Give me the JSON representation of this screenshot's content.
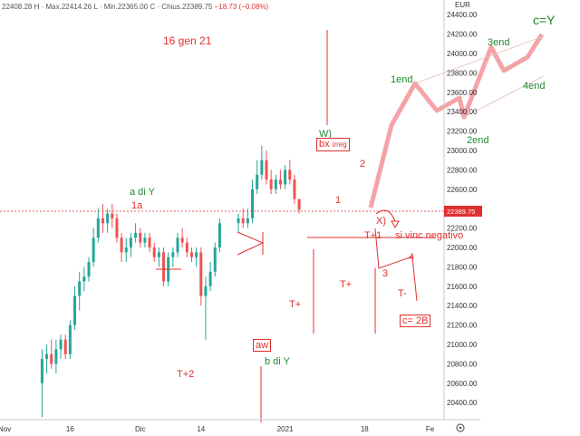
{
  "ohlc_bar": {
    "open": "22408.28",
    "high": "H · Max.22414.26",
    "low": "L · Min.22365.00",
    "close": "C · Chius.22389.75",
    "change": "−18.73 (−0.08%)"
  },
  "currency": "EUR",
  "current_price": "22389.75",
  "chart_data": {
    "type": "candlestick",
    "ylim": [
      20200,
      24500
    ],
    "yticks": [
      20400,
      20600,
      20800,
      21000,
      21200,
      21400,
      21600,
      21800,
      22000,
      22200,
      22400,
      22600,
      22800,
      23000,
      23200,
      23400,
      23600,
      23800,
      24000,
      24200,
      24400
    ],
    "xticks": [
      {
        "label": "Nov",
        "day": -7
      },
      {
        "label": "16",
        "day": 7
      },
      {
        "label": "Dic",
        "day": 22
      },
      {
        "label": "14",
        "day": 35
      },
      {
        "label": "2021",
        "day": 53
      },
      {
        "label": "18",
        "day": 70
      },
      {
        "label": "Fe",
        "day": 84
      }
    ],
    "xlim": [
      -8,
      87
    ],
    "series": [
      {
        "day": 1,
        "o": 20600,
        "h": 20950,
        "l": 20250,
        "c": 20850
      },
      {
        "day": 2,
        "o": 20850,
        "h": 21000,
        "l": 20700,
        "c": 20900
      },
      {
        "day": 3,
        "o": 20900,
        "h": 21050,
        "l": 20750,
        "c": 20800
      },
      {
        "day": 4,
        "o": 20800,
        "h": 21050,
        "l": 20700,
        "c": 20950
      },
      {
        "day": 5,
        "o": 20950,
        "h": 21100,
        "l": 20850,
        "c": 21050
      },
      {
        "day": 6,
        "o": 21050,
        "h": 21100,
        "l": 20850,
        "c": 20900
      },
      {
        "day": 7,
        "o": 20900,
        "h": 21250,
        "l": 20850,
        "c": 21200
      },
      {
        "day": 8,
        "o": 21200,
        "h": 21600,
        "l": 21150,
        "c": 21500
      },
      {
        "day": 9,
        "o": 21500,
        "h": 21750,
        "l": 21350,
        "c": 21650
      },
      {
        "day": 10,
        "o": 21650,
        "h": 21800,
        "l": 21550,
        "c": 21700
      },
      {
        "day": 11,
        "o": 21700,
        "h": 21900,
        "l": 21650,
        "c": 21850
      },
      {
        "day": 12,
        "o": 21850,
        "h": 22200,
        "l": 21800,
        "c": 22100
      },
      {
        "day": 13,
        "o": 22100,
        "h": 22400,
        "l": 22050,
        "c": 22300
      },
      {
        "day": 14,
        "o": 22300,
        "h": 22450,
        "l": 22150,
        "c": 22250
      },
      {
        "day": 15,
        "o": 22250,
        "h": 22400,
        "l": 22150,
        "c": 22350
      },
      {
        "day": 16,
        "o": 22350,
        "h": 22450,
        "l": 22200,
        "c": 22300
      },
      {
        "day": 17,
        "o": 22300,
        "h": 22350,
        "l": 22050,
        "c": 22100
      },
      {
        "day": 18,
        "o": 22100,
        "h": 22150,
        "l": 21850,
        "c": 21950
      },
      {
        "day": 19,
        "o": 21950,
        "h": 22100,
        "l": 21850,
        "c": 22000
      },
      {
        "day": 20,
        "o": 22000,
        "h": 22150,
        "l": 21900,
        "c": 22100
      },
      {
        "day": 21,
        "o": 22100,
        "h": 22250,
        "l": 22050,
        "c": 22150
      },
      {
        "day": 22,
        "o": 22150,
        "h": 22200,
        "l": 22000,
        "c": 22050
      },
      {
        "day": 23,
        "o": 22050,
        "h": 22150,
        "l": 22000,
        "c": 22100
      },
      {
        "day": 24,
        "o": 22100,
        "h": 22150,
        "l": 21950,
        "c": 22000
      },
      {
        "day": 25,
        "o": 22000,
        "h": 22050,
        "l": 21850,
        "c": 21900
      },
      {
        "day": 26,
        "o": 21900,
        "h": 22000,
        "l": 21800,
        "c": 21950
      },
      {
        "day": 27,
        "o": 21950,
        "h": 22000,
        "l": 21600,
        "c": 21650
      },
      {
        "day": 28,
        "o": 21650,
        "h": 21950,
        "l": 21600,
        "c": 21900
      },
      {
        "day": 29,
        "o": 21900,
        "h": 22000,
        "l": 21800,
        "c": 21950
      },
      {
        "day": 30,
        "o": 21950,
        "h": 22150,
        "l": 21900,
        "c": 22100
      },
      {
        "day": 31,
        "o": 22100,
        "h": 22200,
        "l": 22000,
        "c": 22050
      },
      {
        "day": 32,
        "o": 22050,
        "h": 22100,
        "l": 21900,
        "c": 21950
      },
      {
        "day": 33,
        "o": 21950,
        "h": 22000,
        "l": 21850,
        "c": 21900
      },
      {
        "day": 34,
        "o": 21900,
        "h": 22000,
        "l": 21800,
        "c": 21950
      },
      {
        "day": 35,
        "o": 21950,
        "h": 22000,
        "l": 21400,
        "c": 21500
      },
      {
        "day": 36,
        "o": 21500,
        "h": 21700,
        "l": 21050,
        "c": 21600
      },
      {
        "day": 37,
        "o": 21600,
        "h": 21850,
        "l": 21550,
        "c": 21750
      },
      {
        "day": 38,
        "o": 21750,
        "h": 22050,
        "l": 21700,
        "c": 22000
      },
      {
        "day": 39,
        "o": 22000,
        "h": 22300,
        "l": 21950,
        "c": 22250
      },
      {
        "day": 43,
        "o": 22250,
        "h": 22350,
        "l": 22150,
        "c": 22300
      },
      {
        "day": 44,
        "o": 22300,
        "h": 22400,
        "l": 22200,
        "c": 22250
      },
      {
        "day": 45,
        "o": 22250,
        "h": 22400,
        "l": 22200,
        "c": 22300
      },
      {
        "day": 46,
        "o": 22300,
        "h": 22700,
        "l": 22250,
        "c": 22600
      },
      {
        "day": 47,
        "o": 22600,
        "h": 22900,
        "l": 22550,
        "c": 22750
      },
      {
        "day": 48,
        "o": 22750,
        "h": 23050,
        "l": 22700,
        "c": 22900
      },
      {
        "day": 49,
        "o": 22900,
        "h": 23000,
        "l": 22650,
        "c": 22700
      },
      {
        "day": 50,
        "o": 22700,
        "h": 22800,
        "l": 22550,
        "c": 22600
      },
      {
        "day": 51,
        "o": 22600,
        "h": 22750,
        "l": 22550,
        "c": 22700
      },
      {
        "day": 52,
        "o": 22700,
        "h": 22800,
        "l": 22600,
        "c": 22650
      },
      {
        "day": 53,
        "o": 22650,
        "h": 22850,
        "l": 22600,
        "c": 22800
      },
      {
        "day": 54,
        "o": 22800,
        "h": 22900,
        "l": 22650,
        "c": 22700
      },
      {
        "day": 55,
        "o": 22700,
        "h": 22750,
        "l": 22450,
        "c": 22500
      },
      {
        "day": 56,
        "o": 22500,
        "h": 22500,
        "l": 22350,
        "c": 22390
      }
    ]
  },
  "annotations": {
    "date": "16 gen 21",
    "a_di_y": "a di Y",
    "w1a": "1a",
    "wW": "W)",
    "bx": "bx",
    "irreg": "irreg",
    "w1": "1",
    "w2": "2",
    "wX": "X)",
    "tp1": "T+1",
    "vinc": "si vinc negativo",
    "w3": "3",
    "w4": "4",
    "tm": "T-",
    "c2b": "c= 2B",
    "tplus_a": "T+",
    "tplus_b": "T+",
    "aw": "aw",
    "bdiy": "b di Y",
    "t2": "T+2",
    "end1": "1end",
    "end2": "2end",
    "end3": "3end",
    "end4": "4end",
    "cy": "c=Y"
  }
}
